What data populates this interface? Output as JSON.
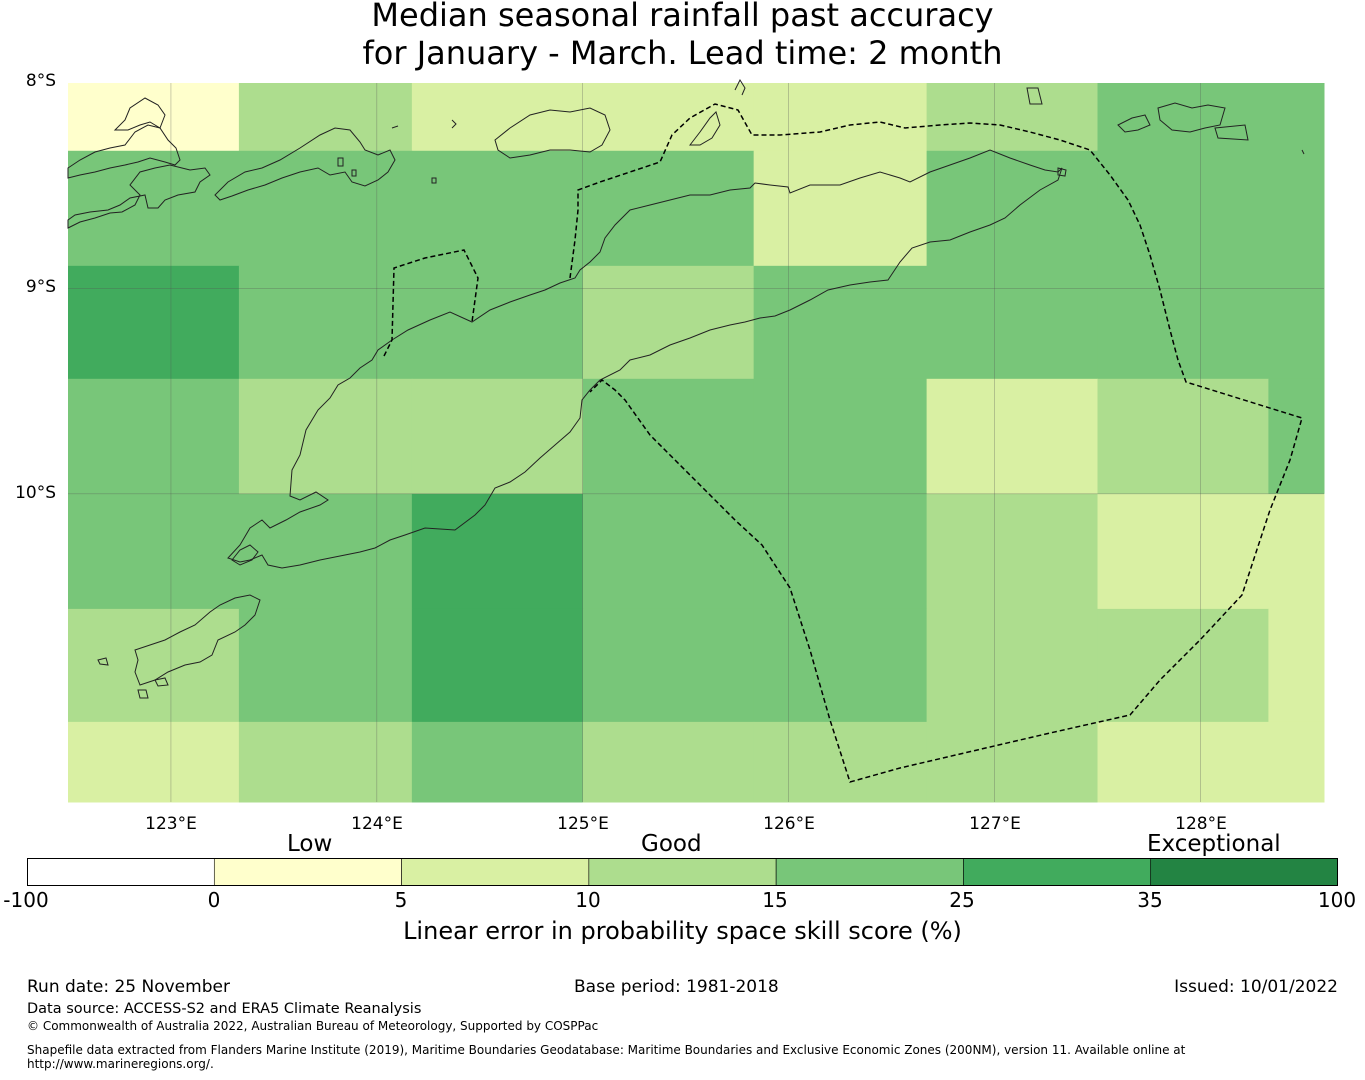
{
  "title": {
    "line1": "Median seasonal rainfall past accuracy",
    "line2": "for January - March. Lead time: 2 month"
  },
  "map": {
    "lat_labels": [
      "8°S",
      "9°S",
      "10°S"
    ],
    "lon_labels": [
      "123°E",
      "124°E",
      "125°E",
      "126°E",
      "127°E",
      "128°E"
    ],
    "lon_range": [
      122.5,
      128.6
    ],
    "lat_range": [
      -8.0,
      -11.5
    ],
    "grid_lons": [
      122.5,
      123.33,
      124.17,
      125.0,
      125.83,
      126.67,
      127.5,
      128.33,
      128.6
    ],
    "grid_lats": [
      -8.0,
      -8.33,
      -8.89,
      -9.44,
      -10.0,
      -10.56,
      -11.11,
      -11.5
    ],
    "cell_class": [
      [
        1,
        3,
        2,
        2,
        2,
        3,
        4,
        4
      ],
      [
        4,
        4,
        4,
        4,
        2,
        4,
        4,
        4
      ],
      [
        5,
        4,
        4,
        3,
        4,
        4,
        4,
        4
      ],
      [
        4,
        3,
        3,
        4,
        4,
        2,
        3,
        4
      ],
      [
        4,
        4,
        5,
        4,
        4,
        3,
        2,
        2
      ],
      [
        3,
        4,
        5,
        4,
        4,
        3,
        3,
        2
      ],
      [
        2,
        3,
        4,
        3,
        3,
        3,
        2,
        2
      ]
    ]
  },
  "legend": {
    "category_labels": [
      "Low",
      "Good",
      "Exceptional"
    ],
    "ticks": [
      "-100",
      "0",
      "5",
      "10",
      "15",
      "25",
      "35",
      "100"
    ],
    "colors": [
      "#ffffff",
      "#ffffcc",
      "#d9f0a3",
      "#addd8e",
      "#78c679",
      "#41ab5d",
      "#238443"
    ],
    "title": "Linear error in probability space skill score (%)"
  },
  "footer": {
    "run_date": "Run date: 25 November",
    "base_period": "Base period: 1981-2018",
    "issued": "Issued: 10/01/2022",
    "data_source": "Data source: ACCESS-S2 and ERA5 Climate Reanalysis",
    "copyright": "© Commonwealth of Australia 2022, Australian Bureau of Meteorology, Supported by COSPPac",
    "shapefile_line1": "Shapefile data extracted from Flanders Marine Institute (2019), Maritime Boundaries Geodatabase: Maritime Boundaries and Exclusive Economic Zones (200NM), version 11. Available online at",
    "shapefile_line2": "http://www.marineregions.org/."
  }
}
